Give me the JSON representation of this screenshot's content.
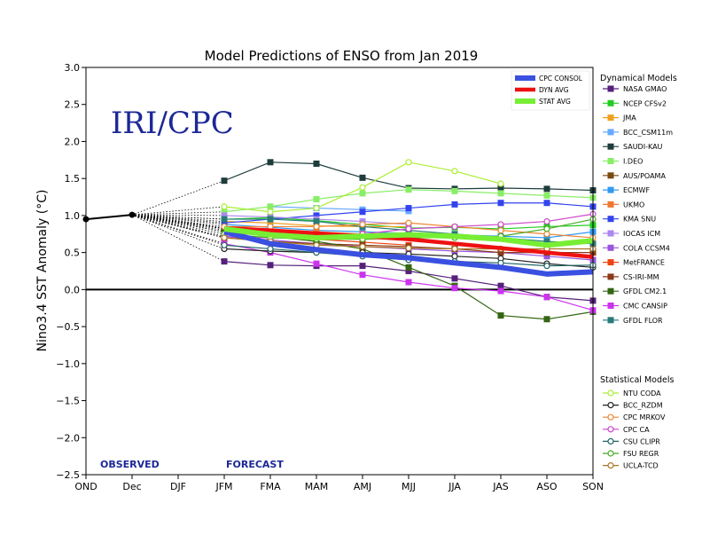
{
  "chart_data": {
    "type": "line",
    "title": "Model Predictions of ENSO from Jan 2019",
    "ylabel": "Nino3.4 SST Anomaly (°C)",
    "xlabel": "",
    "categories": [
      "OND",
      "Dec",
      "DJF",
      "JFM",
      "FMA",
      "MAM",
      "AMJ",
      "MJJ",
      "JJA",
      "JAS",
      "ASO",
      "SON"
    ],
    "ylim": [
      -2.5,
      3.0
    ],
    "yticks": [
      -2.5,
      -2.0,
      -1.5,
      -1.0,
      -0.5,
      0.0,
      0.5,
      1.0,
      1.5,
      2.0,
      2.5,
      3.0
    ],
    "grid": false,
    "logo_text": "IRI/CPC",
    "observed_label": "OBSERVED",
    "forecast_label": "FORECAST",
    "observed": {
      "values": [
        0.95,
        1.01
      ]
    },
    "dynamical_title": "Dynamical Models",
    "statistical_title": "Statistical Models",
    "averages": [
      {
        "name": "CPC CONSOL",
        "color": "#3a50e0",
        "values": [
          null,
          null,
          null,
          0.78,
          0.62,
          0.54,
          0.47,
          0.43,
          0.36,
          0.3,
          0.21,
          0.24
        ]
      },
      {
        "name": "DYN AVG",
        "color": "#ee1111",
        "values": [
          null,
          null,
          null,
          0.83,
          0.8,
          0.76,
          0.72,
          0.68,
          0.62,
          0.56,
          0.5,
          0.44
        ]
      },
      {
        "name": "STAT AVG",
        "color": "#77ee33",
        "values": [
          null,
          null,
          null,
          0.82,
          0.74,
          0.7,
          0.72,
          0.74,
          0.72,
          0.68,
          0.6,
          0.66
        ]
      }
    ],
    "series": [
      {
        "name": "NASA GMAO",
        "group": "dyn",
        "color": "#55217a",
        "marker": "square",
        "values": [
          null,
          null,
          null,
          0.38,
          0.33,
          0.32,
          0.32,
          0.25,
          0.15,
          0.05,
          -0.1,
          -0.15
        ]
      },
      {
        "name": "NCEP CFSv2",
        "group": "dyn",
        "color": "#22cc22",
        "marker": "square",
        "values": [
          null,
          null,
          null,
          0.95,
          0.97,
          0.93,
          0.88,
          0.83,
          0.84,
          0.82,
          0.85,
          0.87
        ]
      },
      {
        "name": "JMA",
        "group": "dyn",
        "color": "#f0a020",
        "marker": "square",
        "values": [
          null,
          null,
          null,
          0.92,
          0.9,
          0.86,
          0.85,
          0.85,
          null,
          null,
          null,
          null
        ]
      },
      {
        "name": "BCC_CSM11m",
        "group": "dyn",
        "color": "#66aaff",
        "marker": "square",
        "values": [
          null,
          null,
          null,
          null,
          1.12,
          1.1,
          1.08,
          1.06,
          null,
          null,
          null,
          null
        ]
      },
      {
        "name": "SAUDI-KAU",
        "group": "dyn",
        "color": "#1e3c3c",
        "marker": "square",
        "values": [
          null,
          null,
          null,
          1.47,
          1.72,
          1.7,
          1.51,
          1.37,
          1.36,
          1.37,
          1.36,
          1.34
        ]
      },
      {
        "name": "I.DEO",
        "group": "dyn",
        "color": "#88ee66",
        "marker": "square",
        "values": [
          null,
          null,
          null,
          1.05,
          1.12,
          1.22,
          1.3,
          1.35,
          1.33,
          1.3,
          1.27,
          1.24
        ]
      },
      {
        "name": "AUS/POAMA",
        "group": "dyn",
        "color": "#7a4a10",
        "marker": "square",
        "values": [
          null,
          null,
          null,
          0.8,
          0.72,
          0.72,
          0.74,
          0.75,
          0.73,
          null,
          null,
          null
        ]
      },
      {
        "name": "ECMWF",
        "group": "dyn",
        "color": "#3399ee",
        "marker": "square",
        "values": [
          null,
          null,
          null,
          0.88,
          0.84,
          0.8,
          0.78,
          0.76,
          0.74,
          0.72,
          0.7,
          0.78
        ]
      },
      {
        "name": "UKMO",
        "group": "dyn",
        "color": "#ee7733",
        "marker": "square",
        "values": [
          null,
          null,
          null,
          0.83,
          0.8,
          0.78,
          0.75,
          null,
          null,
          null,
          null,
          null
        ]
      },
      {
        "name": "KMA SNU",
        "group": "dyn",
        "color": "#3344ee",
        "marker": "square",
        "values": [
          null,
          null,
          null,
          0.9,
          0.95,
          1.0,
          1.05,
          1.1,
          1.15,
          1.17,
          1.17,
          1.12
        ]
      },
      {
        "name": "IOCAS ICM",
        "group": "dyn",
        "color": "#aa88ee",
        "marker": "square",
        "values": [
          null,
          null,
          null,
          1.0,
          0.98,
          0.95,
          0.92,
          0.88,
          null,
          null,
          null,
          null
        ]
      },
      {
        "name": "COLA CCSM4",
        "group": "dyn",
        "color": "#9955dd",
        "marker": "square",
        "values": [
          null,
          null,
          null,
          0.72,
          0.67,
          0.62,
          0.58,
          0.55,
          0.52,
          0.5,
          0.45,
          0.4
        ]
      },
      {
        "name": "MetFRANCE",
        "group": "dyn",
        "color": "#ee4411",
        "marker": "square",
        "values": [
          null,
          null,
          null,
          0.78,
          0.72,
          0.68,
          0.64,
          0.6,
          null,
          null,
          null,
          null
        ]
      },
      {
        "name": "CS-IRI-MM",
        "group": "dyn",
        "color": "#8a3a1a",
        "marker": "square",
        "values": [
          null,
          null,
          null,
          0.7,
          0.65,
          0.62,
          0.6,
          0.58,
          0.55,
          0.5,
          0.5,
          0.5
        ]
      },
      {
        "name": "GFDL CM2.1",
        "group": "dyn",
        "color": "#336611",
        "marker": "square",
        "values": [
          null,
          null,
          null,
          0.82,
          0.72,
          0.65,
          0.55,
          0.3,
          0.05,
          -0.35,
          -0.4,
          -0.3
        ]
      },
      {
        "name": "CMC CANSIP",
        "group": "dyn",
        "color": "#cc33ee",
        "marker": "square",
        "values": [
          null,
          null,
          null,
          0.62,
          0.5,
          0.35,
          0.2,
          0.1,
          0.02,
          -0.02,
          -0.1,
          -0.28
        ]
      },
      {
        "name": "GFDL FLOR",
        "group": "dyn",
        "color": "#2a7a7a",
        "marker": "square",
        "values": [
          null,
          null,
          null,
          0.95,
          0.95,
          0.92,
          0.85,
          0.8,
          0.75,
          0.7,
          0.65,
          0.62
        ]
      },
      {
        "name": "NTU CODA",
        "group": "stat",
        "color": "#aaee33",
        "marker": "circle",
        "values": [
          null,
          null,
          null,
          1.12,
          1.05,
          1.1,
          1.38,
          1.72,
          1.6,
          1.43,
          null,
          null
        ]
      },
      {
        "name": "BCC_RZDM",
        "group": "stat",
        "color": "#222222",
        "marker": "circle",
        "values": [
          null,
          null,
          null,
          0.55,
          0.52,
          0.5,
          0.5,
          0.48,
          0.45,
          0.42,
          0.35,
          0.3
        ]
      },
      {
        "name": "CPC MRKOV",
        "group": "stat",
        "color": "#ee8833",
        "marker": "circle",
        "values": [
          null,
          null,
          null,
          0.85,
          0.85,
          0.85,
          0.88,
          0.9,
          0.85,
          0.8,
          0.75,
          0.7
        ]
      },
      {
        "name": "CPC CA",
        "group": "stat",
        "color": "#cc44cc",
        "marker": "circle",
        "values": [
          null,
          null,
          null,
          0.7,
          0.7,
          0.72,
          0.75,
          0.82,
          0.85,
          0.88,
          0.92,
          1.02
        ]
      },
      {
        "name": "CSU CLIPR",
        "group": "stat",
        "color": "#226666",
        "marker": "circle",
        "values": [
          null,
          null,
          null,
          0.6,
          0.55,
          0.5,
          0.45,
          0.4,
          0.38,
          0.36,
          0.32,
          0.33
        ]
      },
      {
        "name": "FSU REGR",
        "group": "stat",
        "color": "#44aa22",
        "marker": "circle",
        "values": [
          null,
          null,
          null,
          0.75,
          0.7,
          0.68,
          0.68,
          0.7,
          0.7,
          0.72,
          0.82,
          0.95
        ]
      },
      {
        "name": "UCLA-TCD",
        "group": "stat",
        "color": "#aa7722",
        "marker": "circle",
        "values": [
          null,
          null,
          null,
          0.7,
          0.65,
          0.6,
          0.58,
          0.56,
          0.55,
          0.55,
          0.55,
          0.55
        ]
      }
    ]
  }
}
